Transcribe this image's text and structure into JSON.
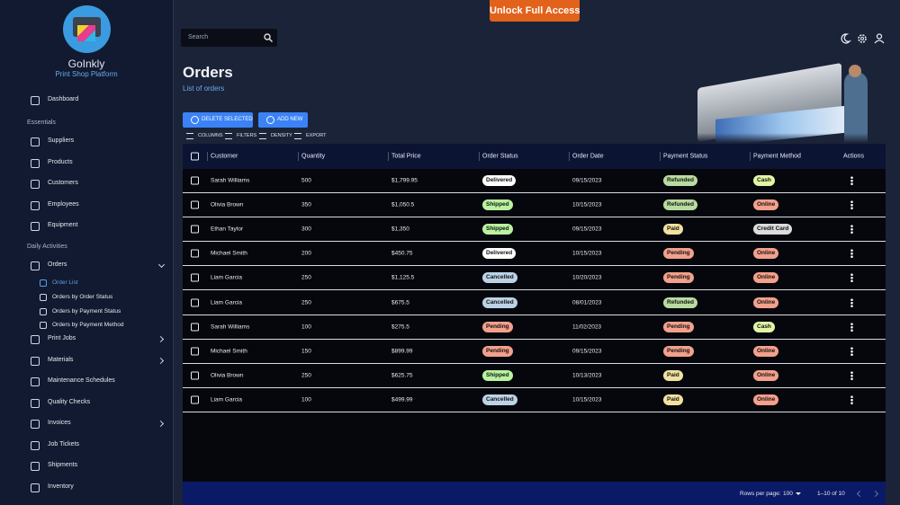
{
  "banner": "Unlock Full Access",
  "brand": {
    "name": "GoInkly",
    "tagline": "Print Shop Platform"
  },
  "sidebar": {
    "top": [
      "Dashboard"
    ],
    "sections": [
      {
        "heading": "Essentials",
        "items": [
          {
            "label": "Suppliers"
          },
          {
            "label": "Products"
          },
          {
            "label": "Customers"
          },
          {
            "label": "Employees"
          },
          {
            "label": "Equipment"
          }
        ]
      },
      {
        "heading": "Daily Activities",
        "items": [
          {
            "label": "Orders",
            "expanded": true,
            "children": [
              "Order List",
              "Orders by Order Status",
              "Orders by Payment Status",
              "Orders by Payment Method"
            ],
            "active_child": 0
          },
          {
            "label": "Print Jobs",
            "expandable": true
          },
          {
            "label": "Materials",
            "expandable": true
          },
          {
            "label": "Maintenance Schedules"
          },
          {
            "label": "Quality Checks"
          },
          {
            "label": "Invoices",
            "expandable": true
          },
          {
            "label": "Job Tickets"
          },
          {
            "label": "Shipments"
          },
          {
            "label": "Inventory"
          }
        ]
      }
    ]
  },
  "search": {
    "placeholder": "Search"
  },
  "page": {
    "title": "Orders",
    "subtitle": "List of orders"
  },
  "buttons": [
    "DELETE SELECTED",
    "ADD NEW"
  ],
  "toolbar": [
    "COLUMNS",
    "FILTERS",
    "DENSITY",
    "EXPORT"
  ],
  "table": {
    "columns": [
      "Customer",
      "Quantity",
      "Total Price",
      "Order Status",
      "Order Date",
      "Payment Status",
      "Payment Method",
      "Actions"
    ],
    "rows": [
      [
        "Sarah Williams",
        500,
        "$1,799.95",
        {
          "text": "Delivered",
          "color": "#ffffff"
        },
        "09/15/2023",
        {
          "text": "Refunded",
          "color": "#b8dca0"
        },
        {
          "text": "Cash",
          "color": "#e2f5a4"
        }
      ],
      [
        "Olivia Brown",
        350,
        "$1,050.5",
        {
          "text": "Shipped",
          "color": "#b9f3a0"
        },
        "10/15/2023",
        {
          "text": "Refunded",
          "color": "#b8dca0"
        },
        {
          "text": "Online",
          "color": "#f3a08c"
        }
      ],
      [
        "Ethan Taylor",
        300,
        "$1,350",
        {
          "text": "Shipped",
          "color": "#b9f3a0"
        },
        "09/15/2023",
        {
          "text": "Paid",
          "color": "#f2e2a0"
        },
        {
          "text": "Credit Card",
          "color": "#dcdcdc"
        }
      ],
      [
        "Michael Smith",
        200,
        "$450.75",
        {
          "text": "Delivered",
          "color": "#ffffff"
        },
        "10/15/2023",
        {
          "text": "Pending",
          "color": "#f3a08c"
        },
        {
          "text": "Online",
          "color": "#f3a08c"
        }
      ],
      [
        "Liam Garcia",
        250,
        "$1,125.5",
        {
          "text": "Cancelled",
          "color": "#bcd3e6"
        },
        "10/20/2023",
        {
          "text": "Pending",
          "color": "#f3a08c"
        },
        {
          "text": "Online",
          "color": "#f3a08c"
        }
      ],
      [
        "Liam Garcia",
        250,
        "$675.5",
        {
          "text": "Cancelled",
          "color": "#bcd3e6"
        },
        "08/01/2023",
        {
          "text": "Refunded",
          "color": "#b8dca0"
        },
        {
          "text": "Online",
          "color": "#f3a08c"
        }
      ],
      [
        "Sarah Williams",
        100,
        "$275.5",
        {
          "text": "Pending",
          "color": "#f3a08c"
        },
        "11/02/2023",
        {
          "text": "Pending",
          "color": "#f3a08c"
        },
        {
          "text": "Cash",
          "color": "#e2f5a4"
        }
      ],
      [
        "Michael Smith",
        150,
        "$899.99",
        {
          "text": "Pending",
          "color": "#f3a08c"
        },
        "09/15/2023",
        {
          "text": "Pending",
          "color": "#f3a08c"
        },
        {
          "text": "Online",
          "color": "#f3a08c"
        }
      ],
      [
        "Olivia Brown",
        250,
        "$625.75",
        {
          "text": "Shipped",
          "color": "#b9f3a0"
        },
        "10/13/2023",
        {
          "text": "Paid",
          "color": "#f2e2a0"
        },
        {
          "text": "Online",
          "color": "#f3a08c"
        }
      ],
      [
        "Liam Garcia",
        100,
        "$499.99",
        {
          "text": "Cancelled",
          "color": "#bcd3e6"
        },
        "10/15/2023",
        {
          "text": "Paid",
          "color": "#f2e2a0"
        },
        {
          "text": "Online",
          "color": "#f3a08c"
        }
      ]
    ]
  },
  "pagination": {
    "rows_per_page_label": "Rows per page:",
    "rows_per_page": 100,
    "range": "1–10 of 10"
  }
}
